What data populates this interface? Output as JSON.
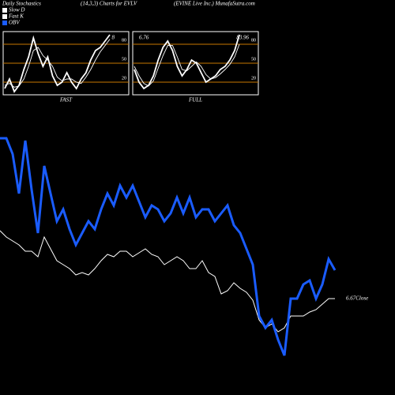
{
  "chart_data": [
    {
      "type": "line",
      "label": "FAST",
      "ylim": [
        0,
        100
      ],
      "yticks": [
        80,
        50,
        20
      ],
      "grid": true,
      "annotations": [
        "8"
      ],
      "series": [
        {
          "name": "Fast K",
          "color": "#ffffff",
          "values": [
            10,
            25,
            5,
            15,
            40,
            60,
            90,
            65,
            45,
            60,
            30,
            15,
            20,
            35,
            20,
            10,
            25,
            35,
            55,
            70,
            75,
            85,
            95
          ]
        },
        {
          "name": "Slow D",
          "color": "#ffffff",
          "values": [
            15,
            18,
            12,
            14,
            25,
            45,
            70,
            75,
            62,
            55,
            45,
            28,
            22,
            25,
            25,
            20,
            18,
            28,
            40,
            55,
            68,
            78,
            88
          ]
        }
      ]
    },
    {
      "type": "line",
      "label": "FULL",
      "ylim": [
        0,
        100
      ],
      "yticks": [
        80,
        50,
        20
      ],
      "grid": true,
      "annotations": [
        "6.76",
        "83.96"
      ],
      "series": [
        {
          "color": "#ffffff",
          "values": [
            40,
            20,
            10,
            15,
            30,
            55,
            75,
            85,
            70,
            45,
            30,
            40,
            55,
            50,
            35,
            20,
            25,
            30,
            40,
            45,
            55,
            70,
            95
          ]
        },
        {
          "color": "#ffffff",
          "values": [
            45,
            30,
            18,
            14,
            22,
            42,
            62,
            78,
            78,
            60,
            40,
            38,
            45,
            52,
            45,
            32,
            25,
            27,
            33,
            40,
            48,
            60,
            80
          ]
        }
      ]
    },
    {
      "type": "line",
      "title": "Daily Stochastics",
      "subtitle": "(14,3,3) Charts for EVLV",
      "caption": "(EVINE Live  Inc.) MunafaSutra.com",
      "ylim": [
        0,
        500
      ],
      "annotations": [
        "6.67Close"
      ],
      "series": [
        {
          "name": "OBV",
          "color": "#1a5cff",
          "values": [
            325,
            325,
            305,
            255,
            322,
            260,
            205,
            290,
            255,
            220,
            235,
            210,
            190,
            205,
            220,
            210,
            235,
            255,
            240,
            265,
            250,
            265,
            245,
            225,
            240,
            235,
            220,
            230,
            250,
            230,
            250,
            225,
            235,
            235,
            220,
            230,
            240,
            215,
            205,
            185,
            165,
            100,
            85,
            95,
            70,
            50,
            122,
            122,
            140,
            145,
            122,
            140,
            172,
            158
          ]
        },
        {
          "color": "#ffffff",
          "values": [
            208,
            200,
            195,
            190,
            182,
            182,
            175,
            200,
            185,
            170,
            165,
            160,
            152,
            155,
            152,
            160,
            170,
            178,
            175,
            182,
            182,
            175,
            180,
            185,
            178,
            175,
            165,
            170,
            175,
            170,
            160,
            160,
            170,
            155,
            150,
            128,
            132,
            142,
            135,
            130,
            120,
            95,
            85,
            90,
            80,
            85,
            100,
            100,
            100,
            105,
            108,
            115,
            122,
            122
          ]
        }
      ]
    }
  ]
}
